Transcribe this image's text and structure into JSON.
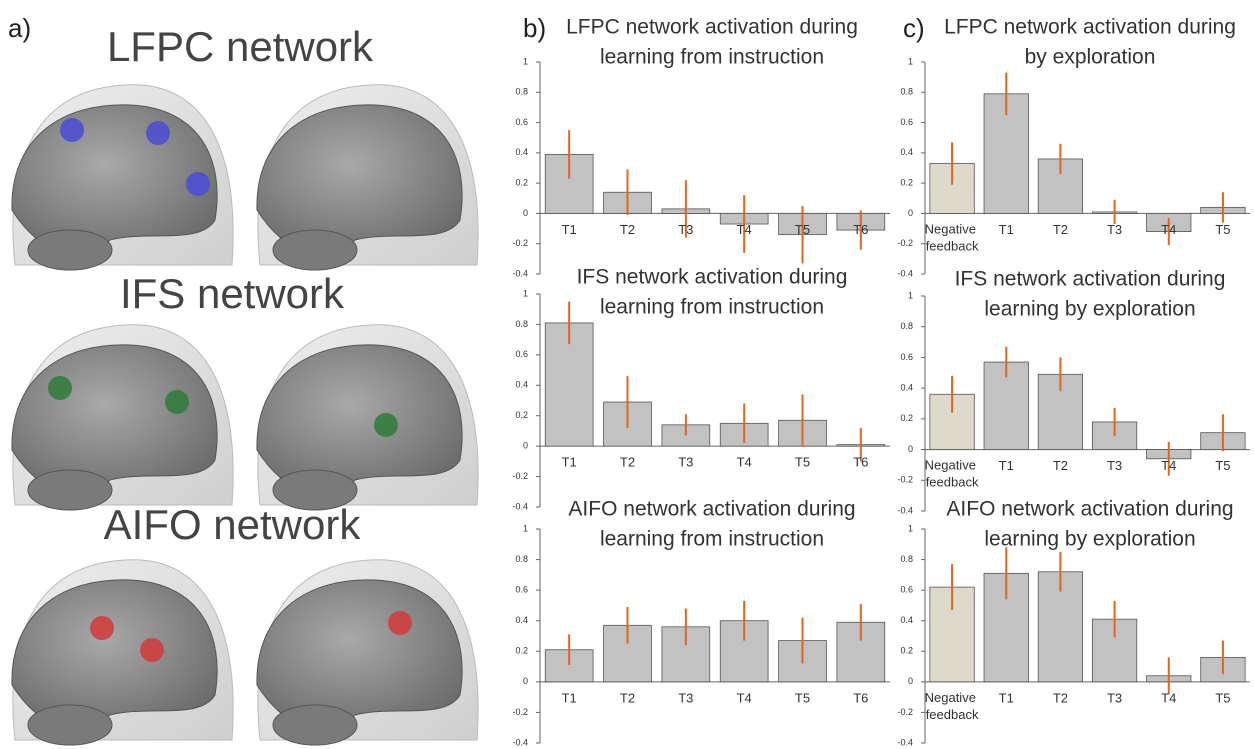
{
  "panel_a": {
    "label": "a)",
    "titles": [
      "LFPC network",
      "IFS network",
      "AIFO network"
    ]
  },
  "panel_b": {
    "label": "b)"
  },
  "panel_c": {
    "label": "c)"
  },
  "chart_data": [
    {
      "type": "bar",
      "title": [
        "LFPC network activation during",
        "learning from instruction"
      ],
      "categories": [
        "T1",
        "T2",
        "T3",
        "T4",
        "T5",
        "T6"
      ],
      "values": [
        0.39,
        0.14,
        0.03,
        -0.07,
        -0.14,
        -0.11
      ],
      "errors": [
        0.16,
        0.15,
        0.19,
        0.19,
        0.19,
        0.13
      ],
      "colors": [
        "#c2c2c2",
        "#c2c2c2",
        "#c2c2c2",
        "#c2c2c2",
        "#c2c2c2",
        "#c2c2c2"
      ],
      "error_color": "#e0661f",
      "ylim": [
        -0.4,
        1
      ],
      "yticks": [
        -0.4,
        -0.2,
        0,
        0.2,
        0.4,
        0.6,
        0.8,
        1
      ]
    },
    {
      "type": "bar",
      "title": [
        "IFS network activation during",
        "learning from instruction"
      ],
      "categories": [
        "T1",
        "T2",
        "T3",
        "T4",
        "T5",
        "T6"
      ],
      "values": [
        0.81,
        0.29,
        0.14,
        0.15,
        0.17,
        0.01
      ],
      "errors": [
        0.14,
        0.17,
        0.07,
        0.13,
        0.17,
        0.11
      ],
      "colors": [
        "#c2c2c2",
        "#c2c2c2",
        "#c2c2c2",
        "#c2c2c2",
        "#c2c2c2",
        "#c2c2c2"
      ],
      "error_color": "#e0661f",
      "ylim": [
        -0.4,
        1
      ],
      "yticks": [
        -0.4,
        -0.2,
        0,
        0.2,
        0.4,
        0.6,
        0.8,
        1
      ]
    },
    {
      "type": "bar",
      "title": [
        "AIFO network activation during",
        "learning from instruction"
      ],
      "categories": [
        "T1",
        "T2",
        "T3",
        "T4",
        "T5",
        "T6"
      ],
      "values": [
        0.21,
        0.37,
        0.36,
        0.4,
        0.27,
        0.39
      ],
      "errors": [
        0.1,
        0.12,
        0.12,
        0.13,
        0.15,
        0.12
      ],
      "colors": [
        "#c2c2c2",
        "#c2c2c2",
        "#c2c2c2",
        "#c2c2c2",
        "#c2c2c2",
        "#c2c2c2"
      ],
      "error_color": "#e0661f",
      "ylim": [
        -0.4,
        1
      ],
      "yticks": [
        -0.4,
        -0.2,
        0,
        0.2,
        0.4,
        0.6,
        0.8,
        1
      ]
    },
    {
      "type": "bar",
      "title": [
        "LFPC network activation during",
        "by exploration"
      ],
      "categories": [
        "Negative feedback",
        "T1",
        "T2",
        "T3",
        "T4",
        "T5"
      ],
      "values": [
        0.33,
        0.79,
        0.36,
        0.01,
        -0.12,
        0.04
      ],
      "errors": [
        0.14,
        0.14,
        0.1,
        0.08,
        0.09,
        0.1
      ],
      "colors": [
        "#dddacb",
        "#c2c2c2",
        "#c2c2c2",
        "#c2c2c2",
        "#c2c2c2",
        "#c2c2c2"
      ],
      "error_color": "#e0661f",
      "ylim": [
        -0.4,
        1
      ],
      "yticks": [
        -0.4,
        -0.2,
        0,
        0.2,
        0.4,
        0.6,
        0.8,
        1
      ]
    },
    {
      "type": "bar",
      "title": [
        "IFS network activation during",
        "learning by exploration"
      ],
      "categories": [
        "Negative feedback",
        "T1",
        "T2",
        "T3",
        "T4",
        "T5"
      ],
      "values": [
        0.36,
        0.57,
        0.49,
        0.18,
        -0.06,
        0.11
      ],
      "errors": [
        0.12,
        0.1,
        0.11,
        0.09,
        0.11,
        0.12
      ],
      "colors": [
        "#dddacb",
        "#c2c2c2",
        "#c2c2c2",
        "#c2c2c2",
        "#c2c2c2",
        "#c2c2c2"
      ],
      "error_color": "#e0661f",
      "ylim": [
        -0.4,
        1
      ],
      "yticks": [
        -0.4,
        -0.2,
        0,
        0.2,
        0.4,
        0.6,
        0.8,
        1
      ]
    },
    {
      "type": "bar",
      "title": [
        "AIFO network activation during",
        "learning by exploration"
      ],
      "categories": [
        "Negative feedback",
        "T1",
        "T2",
        "T3",
        "T4",
        "T5"
      ],
      "values": [
        0.62,
        0.71,
        0.72,
        0.41,
        0.04,
        0.16
      ],
      "errors": [
        0.15,
        0.17,
        0.13,
        0.12,
        0.12,
        0.11
      ],
      "colors": [
        "#dddacb",
        "#c2c2c2",
        "#c2c2c2",
        "#c2c2c2",
        "#c2c2c2",
        "#c2c2c2"
      ],
      "error_color": "#e0661f",
      "ylim": [
        -0.4,
        1
      ],
      "yticks": [
        -0.4,
        -0.2,
        0,
        0.2,
        0.4,
        0.6,
        0.8,
        1
      ]
    }
  ]
}
